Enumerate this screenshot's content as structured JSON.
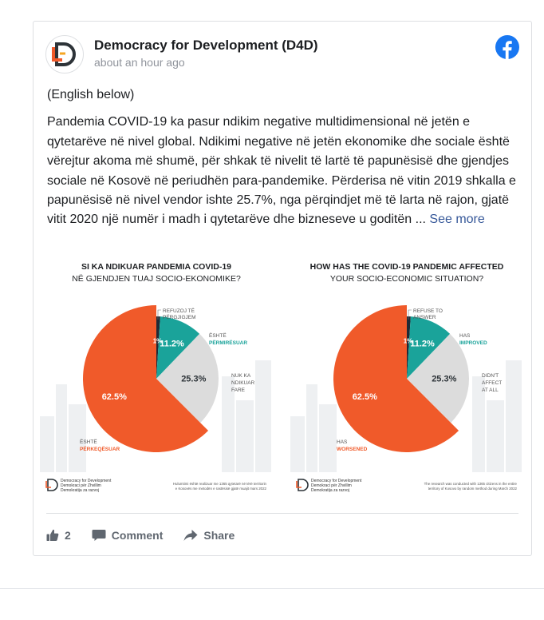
{
  "post": {
    "page_name": "Democracy for Development (D4D)",
    "timestamp": "about an hour ago",
    "intro": "(English below)",
    "body": "Pandemia COVID-19 ka pasur ndikim negative multidimensional në jetën e qytetarëve në nivel global. Ndikimi negative në jetën ekonomike dhe sociale është vërejtur akoma më shumë, për shkak të nivelit të lartë të papunësisë dhe gjendjes sociale në Kosovë në periudhën para-pandemike. Përderisa në vitin 2019 shkalla e papunësisë në nivel vendor ishte 25.7%, nga përqindjet më të larta në rajon, gjatë vitit 2020 një numër i madh i qytetarëve dhe bizneseve u goditën ...",
    "see_more": "See more",
    "logo_icon": "d4d-logo",
    "network_icon": "facebook-icon"
  },
  "images": [
    {
      "title_line1": "SI KA NDIKUAR PANDEMIA COVID-19",
      "title_line2": "NË GJENDJEN TUAJ SOCIO-EKONOMIKE?",
      "label_refuse_1": "REFUZOJ TË",
      "label_refuse_2": "PËRGJIGJEM",
      "label_improved_1": "ËSHTË",
      "label_improved_2": "PËRMIRËSUAR",
      "label_no_1": "NUK KA",
      "label_no_2": "NDIKUAR",
      "label_no_3": "FARE",
      "label_worse_1": "ËSHTË",
      "label_worse_2": "PËRKEQËSUAR",
      "value_refuse": "1",
      "value_improved": "11.2",
      "value_no": "25.3",
      "value_worse": "62.5",
      "pct": "%",
      "footer_org_1": "Democracy for Development",
      "footer_org_2": "Demokraci për Zhvillim",
      "footer_org_3": "Demokratija za razvoj",
      "footer_note_1": "Hulumtimi është realizuar me 1365 qytetarë në tërë territorin",
      "footer_note_2": "e Kosovës me metodën e rastësisë gjatë muajit mars 2022"
    },
    {
      "title_line1": "HOW HAS THE COVID-19 PANDEMIC AFFECTED",
      "title_line2": "YOUR SOCIO-ECONOMIC SITUATION?",
      "label_refuse_1": "REFUSE TO",
      "label_refuse_2": "ANSWER",
      "label_improved_1": "HAS",
      "label_improved_2": "IMPROVED",
      "label_no_1": "DIDN'T",
      "label_no_2": "AFFECT",
      "label_no_3": "AT ALL",
      "label_worse_1": "HAS",
      "label_worse_2": "WORSENED",
      "value_refuse": "1",
      "value_improved": "11.2",
      "value_no": "25.3",
      "value_worse": "62.5",
      "pct": "%",
      "footer_org_1": "Democracy for Development",
      "footer_org_2": "Demokraci për Zhvillim",
      "footer_org_3": "Demokratija za razvoj",
      "footer_note_1": "The research was conducted with 1365 citizens in the entire",
      "footer_note_2": "territory of Kosovo by random method during March 2022"
    }
  ],
  "chart_data": [
    {
      "type": "pie",
      "title": "SI KA NDIKUAR PANDEMIA COVID-19 NË GJENDJEN TUAJ SOCIO-EKONOMIKE?",
      "categories": [
        "REFUZOJ TË PËRGJIGJEM",
        "ËSHTË PËRMIRËSUAR",
        "NUK KA NDIKUAR FARE",
        "ËSHTË PËRKEQËSUAR"
      ],
      "values": [
        1,
        11.2,
        25.3,
        62.5
      ],
      "unit": "%",
      "colors": [
        "#1f2a36",
        "#1aa39a",
        "#dcdcdc",
        "#f05a2a"
      ]
    },
    {
      "type": "pie",
      "title": "HOW HAS THE COVID-19 PANDEMIC AFFECTED YOUR SOCIO-ECONOMIC SITUATION?",
      "categories": [
        "REFUSE TO ANSWER",
        "HAS IMPROVED",
        "DIDN'T AFFECT AT ALL",
        "HAS WORSENED"
      ],
      "values": [
        1,
        11.2,
        25.3,
        62.5
      ],
      "unit": "%",
      "colors": [
        "#1f2a36",
        "#1aa39a",
        "#dcdcdc",
        "#f05a2a"
      ]
    }
  ],
  "actions": {
    "like_icon": "thumbs-up-icon",
    "like_count": "2",
    "comment_icon": "comment-icon",
    "comment_label": "Comment",
    "share_icon": "share-icon",
    "share_label": "Share"
  },
  "colors": {
    "link": "#365899",
    "worsened": "#f05a2a",
    "improved": "#1aa39a",
    "no_effect": "#dcdcdc",
    "refused": "#1f2a36",
    "facebook": "#1877f2"
  }
}
